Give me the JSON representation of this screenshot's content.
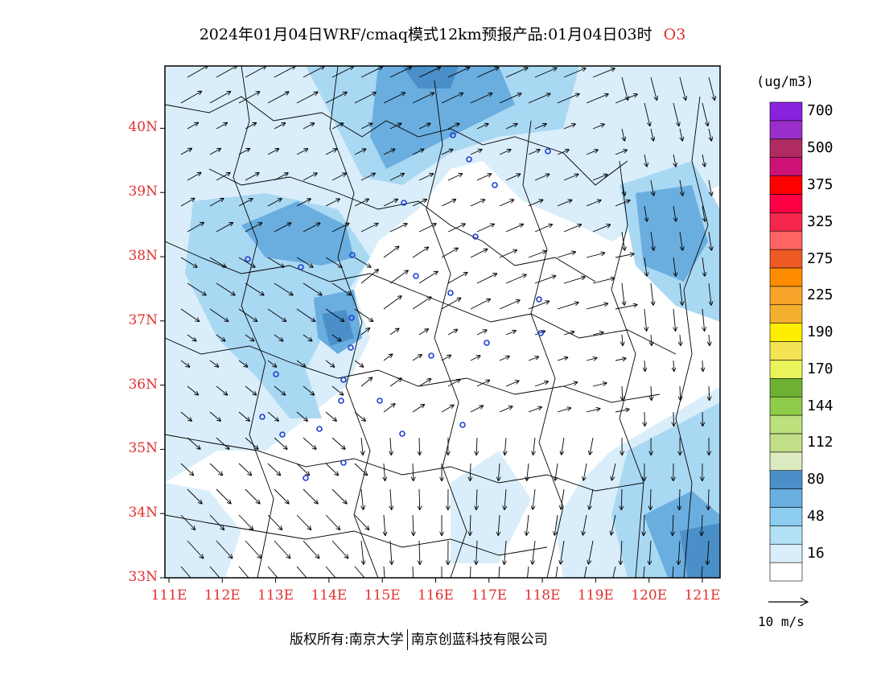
{
  "title": {
    "main": "2024年01月04日WRF/cmaq模式12km预报产品:01月04日03时",
    "pollutant": "O3"
  },
  "map": {
    "lon_ticks": [
      "111E",
      "112E",
      "113E",
      "114E",
      "115E",
      "116E",
      "117E",
      "118E",
      "119E",
      "120E",
      "121E"
    ],
    "lat_ticks": [
      "33N",
      "34N",
      "35N",
      "36N",
      "37N",
      "38N",
      "39N",
      "40N"
    ]
  },
  "colorbar": {
    "unit": "(ug/m3)",
    "colors": [
      "#ffffff",
      "#d9eefa",
      "#b2e0f7",
      "#8dcdf2",
      "#6aaedf",
      "#4a8fc8",
      "#dcebc0",
      "#c2df88",
      "#bce07c",
      "#8fcc4a",
      "#6fb034",
      "#e9f35a",
      "#f4e455",
      "#ffee00",
      "#f5af2e",
      "#f7a52a",
      "#ff8c00",
      "#ee5a24",
      "#ff6464",
      "#f5264e",
      "#ff0044",
      "#ff0000",
      "#cc1177",
      "#b02c60",
      "#9a2eca",
      "#8822dd"
    ],
    "labels": [
      {
        "text": "16",
        "idx": 1
      },
      {
        "text": "48",
        "idx": 3
      },
      {
        "text": "80",
        "idx": 5
      },
      {
        "text": "112",
        "idx": 7
      },
      {
        "text": "144",
        "idx": 9
      },
      {
        "text": "170",
        "idx": 11
      },
      {
        "text": "190",
        "idx": 13
      },
      {
        "text": "225",
        "idx": 15
      },
      {
        "text": "275",
        "idx": 17
      },
      {
        "text": "325",
        "idx": 19
      },
      {
        "text": "375",
        "idx": 21
      },
      {
        "text": "500",
        "idx": 23
      },
      {
        "text": "700",
        "idx": 25
      }
    ]
  },
  "wind_reference": "10 m/s",
  "footer": {
    "left": "版权所有:南京大学",
    "right": "南京创蓝科技有限公司"
  },
  "colors": {
    "axis_label": "#e03030",
    "fill_light": "#d9eefa",
    "fill_mid": "#a9d8f3",
    "fill_dark": "#6aaedf",
    "fill_darker": "#4a8fc8",
    "station": "#1f3fd0"
  }
}
